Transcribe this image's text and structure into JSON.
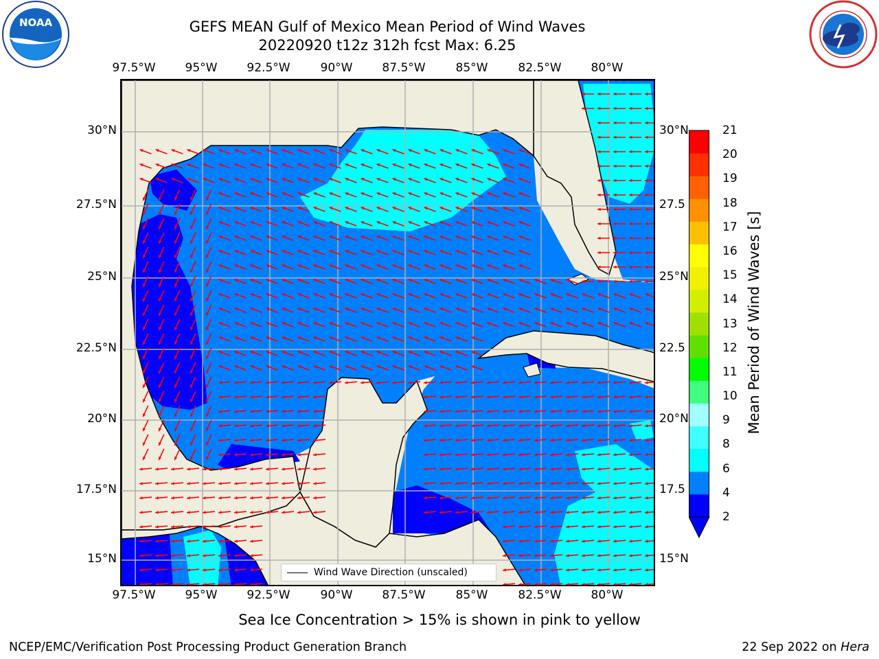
{
  "title": {
    "line1": "GEFS MEAN Gulf of Mexico Mean Period of Wind Waves",
    "line2": "20220920 t12z 312h fcst   Max: 6.25"
  },
  "axes": {
    "lon_labels": [
      "97.5°W",
      "95°W",
      "92.5°W",
      "90°W",
      "87.5°W",
      "85°W",
      "82.5°W",
      "80°W"
    ],
    "lat_labels_left": [
      "30°N",
      "27.5°N",
      "25°N",
      "22.5°N",
      "20°N",
      "17.5°N",
      "15°N"
    ],
    "lat_labels_right": [
      "30°N",
      "27.5",
      "25°N",
      "22.5",
      "20°N",
      "17.5",
      "15°N"
    ]
  },
  "legend": {
    "label": "Wind Wave Direction (unscaled)"
  },
  "colorbar": {
    "label": "Mean Period of Wind Waves [s]",
    "ticks": [
      "21",
      "20",
      "19",
      "18",
      "17",
      "16",
      "15",
      "14",
      "13",
      "12",
      "11",
      "10",
      "9",
      "8",
      "6",
      "4",
      "2"
    ],
    "colors": [
      "#0000ff",
      "#0080ff",
      "#00ffff",
      "#40ffff",
      "#a0ffff",
      "#40ff80",
      "#00ff00",
      "#60e000",
      "#a0e000",
      "#d0f000",
      "#f0f000",
      "#ffff00",
      "#ffc000",
      "#ff9000",
      "#ff6000",
      "#ff3000",
      "#ff0000"
    ],
    "under_color": "#0000ff"
  },
  "footer": {
    "seaice_note": "Sea Ice Concentration > 15% is shown in pink to yellow",
    "credit": "NCEP/EMC/Verification Post Processing Product Generation Branch",
    "date_prefix": "22 Sep 2022 on",
    "machine": "Hera"
  },
  "logos": {
    "noaa": {
      "text": "NOAA",
      "ring_text": "NATIONAL OCEANIC AND ATMOSPHERIC ADMINISTRATION · U.S. DEPARTMENT OF COMMERCE"
    },
    "nws": {
      "ring_text": "NATIONAL WEATHER SERVICE"
    }
  },
  "colors": {
    "land": "#efedde",
    "arrow": "#ff0000",
    "grid": "#b0b0b0"
  }
}
